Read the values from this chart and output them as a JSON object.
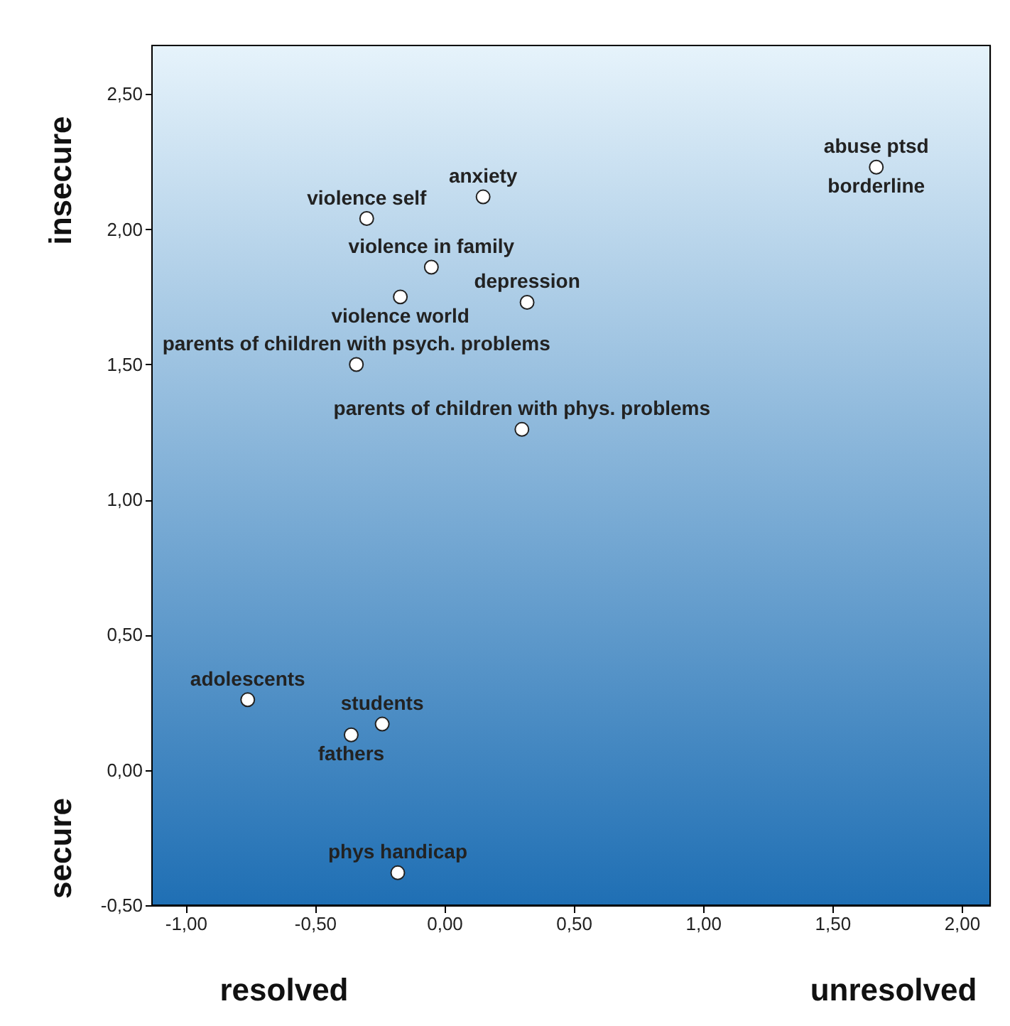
{
  "chart_data": {
    "type": "scatter",
    "series": [
      {
        "color": "#ffffff",
        "x": [
          1.67,
          0.15,
          -0.3,
          -0.05,
          -0.17,
          0.32,
          -0.34,
          0.3,
          -0.76,
          -0.24,
          -0.36,
          -0.18
        ],
        "values": [
          2.23,
          2.12,
          2.04,
          1.86,
          1.75,
          1.73,
          1.5,
          1.26,
          0.26,
          0.17,
          0.13,
          -0.38
        ]
      }
    ],
    "annotations": [
      {
        "text": "abuse ptsd",
        "x": 1.67,
        "y": 2.23
      },
      {
        "text": "borderline",
        "x": 1.67,
        "y": 2.23
      },
      {
        "text": "anxiety",
        "x": 0.15,
        "y": 2.12
      },
      {
        "text": "violence self",
        "x": -0.3,
        "y": 2.04
      },
      {
        "text": "violence in family",
        "x": -0.05,
        "y": 1.86
      },
      {
        "text": "violence world",
        "x": -0.17,
        "y": 1.75
      },
      {
        "text": "depression",
        "x": 0.32,
        "y": 1.73
      },
      {
        "text": "parents of children with psych. problems",
        "x": -0.34,
        "y": 1.5
      },
      {
        "text": "parents of children with phys. problems",
        "x": 0.3,
        "y": 1.26
      },
      {
        "text": "adolescents",
        "x": -0.76,
        "y": 0.26
      },
      {
        "text": "students",
        "x": -0.24,
        "y": 0.17
      },
      {
        "text": "fathers",
        "x": -0.36,
        "y": 0.13
      },
      {
        "text": "phys handicap",
        "x": -0.18,
        "y": -0.38
      },
      "resolved",
      "unresolved",
      "insecure",
      "secure"
    ],
    "xlim": [
      -1.13,
      2.11
    ],
    "ylim": [
      -0.5,
      2.68
    ],
    "xticks": [
      {
        "value": -1,
        "label": "-1,00"
      },
      {
        "value": -0.5,
        "label": "-0,50"
      },
      {
        "value": 0,
        "label": "0,00"
      },
      {
        "value": 0.5,
        "label": "0,50"
      },
      {
        "value": 1,
        "label": "1,00"
      },
      {
        "value": 1.5,
        "label": "1,50"
      },
      {
        "value": 2,
        "label": "2,00"
      }
    ],
    "yticks": [
      {
        "value": -0.5,
        "label": "-0,50"
      },
      {
        "value": 0,
        "label": "0,00"
      },
      {
        "value": 0.5,
        "label": "0,50"
      },
      {
        "value": 1,
        "label": "1,00"
      },
      {
        "value": 1.5,
        "label": "1,50"
      },
      {
        "value": 2,
        "label": "2,00"
      },
      {
        "value": 2.5,
        "label": "2,50"
      }
    ],
    "marker": "circle"
  }
}
